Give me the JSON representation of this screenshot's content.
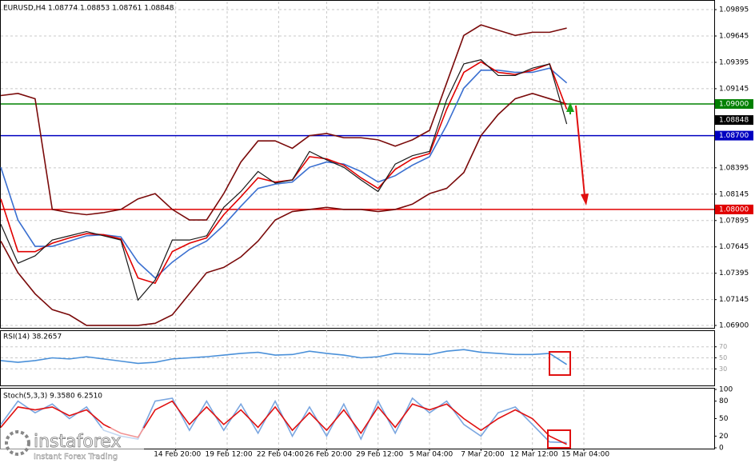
{
  "chart_data": [
    {
      "type": "line",
      "title": "EURUSD,H4  1.08774 1.08853 1.08761 1.08848",
      "x": [
        0,
        5,
        10,
        15,
        20,
        25,
        30,
        35,
        40,
        45,
        50,
        55,
        60,
        65,
        70,
        75,
        80,
        85,
        90,
        95,
        100,
        105,
        110,
        115,
        120,
        125,
        130,
        135,
        140,
        145,
        150,
        155,
        160,
        165
      ],
      "xlim": [
        0,
        208
      ],
      "ylim": [
        1.06877,
        1.09971
      ],
      "yticks": [
        {
          "value": 1.069,
          "label": "1.06900"
        },
        1.07145,
        1.07395,
        1.07645,
        1.07895,
        1.08145,
        1.08395,
        1.09145,
        1.09395,
        1.09645,
        1.09895
      ],
      "grid": true,
      "series": [
        {
          "color": "#7a0a0a",
          "values": [
            1.0908,
            1.091,
            1.0905,
            1.08,
            1.0797,
            1.0795,
            1.0797,
            1.08,
            1.081,
            1.0815,
            1.08,
            1.079,
            1.079,
            1.0815,
            1.0845,
            1.0865,
            1.0865,
            1.0858,
            1.087,
            1.0872,
            1.0868,
            1.0868,
            1.0866,
            1.086,
            1.0866,
            1.0875,
            1.092,
            1.0965,
            1.0975,
            1.097,
            1.0965,
            1.0968,
            1.0968,
            1.0972
          ]
        },
        {
          "color": "#7a0a0a",
          "values": [
            1.077,
            1.074,
            1.072,
            1.0705,
            1.07,
            1.069,
            1.069,
            1.069,
            1.069,
            1.0692,
            1.07,
            1.072,
            1.074,
            1.0745,
            1.0755,
            1.077,
            1.079,
            1.0798,
            1.08,
            1.0802,
            1.08,
            1.08,
            1.0798,
            1.08,
            1.0805,
            1.0815,
            1.082,
            1.0835,
            1.087,
            1.089,
            1.0905,
            1.091,
            1.0905,
            1.09
          ]
        },
        {
          "color": "#3a6fd0",
          "values": [
            1.084,
            1.079,
            1.0765,
            1.0765,
            1.077,
            1.0775,
            1.0776,
            1.0774,
            1.075,
            1.0735,
            1.075,
            1.0762,
            1.077,
            1.0785,
            1.0803,
            1.082,
            1.0824,
            1.0826,
            1.084,
            1.0845,
            1.0843,
            1.0836,
            1.0826,
            1.0832,
            1.0842,
            1.085,
            1.088,
            1.0915,
            1.0932,
            1.0932,
            1.093,
            1.093,
            1.0934,
            1.092
          ]
        },
        {
          "color": "#e00000",
          "values": [
            1.081,
            1.076,
            1.076,
            1.0768,
            1.0773,
            1.0777,
            1.0776,
            1.0772,
            1.0735,
            1.073,
            1.076,
            1.0768,
            1.0773,
            1.0795,
            1.0812,
            1.083,
            1.0826,
            1.0828,
            1.085,
            1.0848,
            1.0842,
            1.083,
            1.082,
            1.0838,
            1.0848,
            1.0853,
            1.0895,
            1.093,
            1.094,
            1.093,
            1.0928,
            1.0932,
            1.0938,
            1.0895
          ]
        },
        {
          "color": "#1a1a1a",
          "values": [
            1.0786,
            1.0749,
            1.0756,
            1.0771,
            1.0775,
            1.0779,
            1.0775,
            1.0771,
            1.0714,
            1.0733,
            1.0771,
            1.0771,
            1.0775,
            1.0802,
            1.0817,
            1.0836,
            1.0825,
            1.0828,
            1.0855,
            1.0847,
            1.084,
            1.0828,
            1.0817,
            1.0843,
            1.0851,
            1.0855,
            1.0904,
            1.0938,
            1.0942,
            1.0927,
            1.0927,
            1.0934,
            1.0938,
            1.0881
          ]
        }
      ],
      "levels": [
        {
          "value": 1.09,
          "label": "1.09000",
          "color": "#008000"
        },
        {
          "value": 1.087,
          "label": "1.08700",
          "color": "#0000c0"
        },
        {
          "value": 1.08,
          "label": "1.08000",
          "color": "#e00000"
        }
      ],
      "last_price": {
        "value": 1.08848,
        "label": "1.08848"
      }
    },
    {
      "type": "line",
      "title": "RSI(14) 38.2657",
      "x": [
        0,
        5,
        10,
        15,
        20,
        25,
        30,
        35,
        40,
        45,
        50,
        55,
        60,
        65,
        70,
        75,
        80,
        85,
        90,
        95,
        100,
        105,
        110,
        115,
        120,
        125,
        130,
        135,
        140,
        145,
        150,
        155,
        160,
        165
      ],
      "xlim": [
        0,
        208
      ],
      "ylim": [
        0,
        100
      ],
      "yticks": [
        30,
        50,
        70
      ],
      "series": [
        {
          "color": "#4a90d9",
          "values": [
            45,
            42,
            45,
            50,
            48,
            52,
            48,
            44,
            40,
            42,
            48,
            50,
            52,
            55,
            58,
            60,
            55,
            56,
            62,
            58,
            55,
            50,
            52,
            58,
            57,
            56,
            62,
            65,
            60,
            58,
            56,
            56,
            58,
            38
          ]
        }
      ]
    },
    {
      "type": "line",
      "title": "Stoch(5,3,3) 9.3580 6.2510",
      "x": [
        0,
        5,
        10,
        15,
        20,
        25,
        30,
        35,
        40,
        45,
        50,
        55,
        60,
        65,
        70,
        75,
        80,
        85,
        90,
        95,
        100,
        105,
        110,
        115,
        120,
        125,
        130,
        135,
        140,
        145,
        150,
        155,
        160,
        165
      ],
      "xlim": [
        0,
        208
      ],
      "ylim": [
        0,
        100
      ],
      "yticks": [
        0,
        20,
        50,
        80,
        100
      ],
      "xticks": [
        {
          "value": 51,
          "label": "14 Feb 20:00"
        },
        {
          "value": 66,
          "label": "19 Feb 12:00"
        },
        {
          "value": 81,
          "label": "22 Feb 04:00"
        },
        {
          "value": 95,
          "label": "26 Feb 20:00"
        },
        {
          "value": 110,
          "label": "29 Feb 12:00"
        },
        {
          "value": 125,
          "label": "5 Mar 04:00"
        },
        {
          "value": 140,
          "label": "7 Mar 20:00"
        },
        {
          "value": 155,
          "label": "12 Mar 12:00"
        },
        {
          "value": 170,
          "label": "15 Mar 04:00"
        }
      ],
      "series": [
        {
          "color": "#7aa6e0",
          "values": [
            40,
            80,
            60,
            75,
            50,
            70,
            30,
            20,
            15,
            80,
            85,
            30,
            80,
            30,
            75,
            25,
            80,
            20,
            70,
            20,
            75,
            15,
            80,
            25,
            85,
            60,
            80,
            40,
            20,
            60,
            70,
            40,
            10,
            9
          ]
        },
        {
          "color": "#e01010",
          "values": [
            35,
            70,
            65,
            70,
            55,
            65,
            40,
            25,
            18,
            65,
            80,
            40,
            70,
            40,
            65,
            35,
            70,
            30,
            60,
            30,
            65,
            25,
            70,
            35,
            75,
            65,
            75,
            50,
            30,
            50,
            65,
            50,
            20,
            6
          ]
        }
      ]
    }
  ],
  "branding": {
    "name": "instaforex",
    "tagline": "Instant Forex Trading"
  }
}
